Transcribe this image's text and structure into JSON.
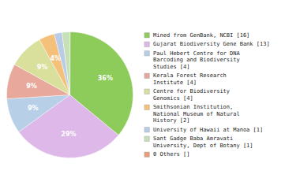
{
  "chart_data": {
    "type": "pie",
    "categories": [
      "Mined from GenBank, NCBI [16]",
      "Gujarat Biodiversity Gene Bank [13]",
      "Paul Hebert Centre for DNA\nBarcoding and Biodiversity\nStudies [4]",
      "Kerala Forest Research\nInstitute [4]",
      "Centre for Biodiversity\nGenomics [4]",
      "Smithsonian Institution,\nNational Museum of Natural\nHistory [2]",
      "University of Hawaii at Manoa [1]",
      "Sant Gadge Baba Amravati\nUniversity, Dept of Botany [1]",
      "0 Others []"
    ],
    "values": [
      36,
      29,
      9,
      9,
      9,
      4,
      2,
      2,
      0
    ],
    "value_labels": [
      "36%",
      "29%",
      "9%",
      "9%",
      "9%",
      "4%",
      null,
      null,
      null
    ],
    "colors": [
      "#8dcc5a",
      "#ddb8e8",
      "#b8cfe8",
      "#e8a89c",
      "#d8e09c",
      "#f5c07a",
      "#b8cce8",
      "#c8e0b8",
      "#e89c7a"
    ],
    "data_labels": true,
    "legend": "right"
  }
}
